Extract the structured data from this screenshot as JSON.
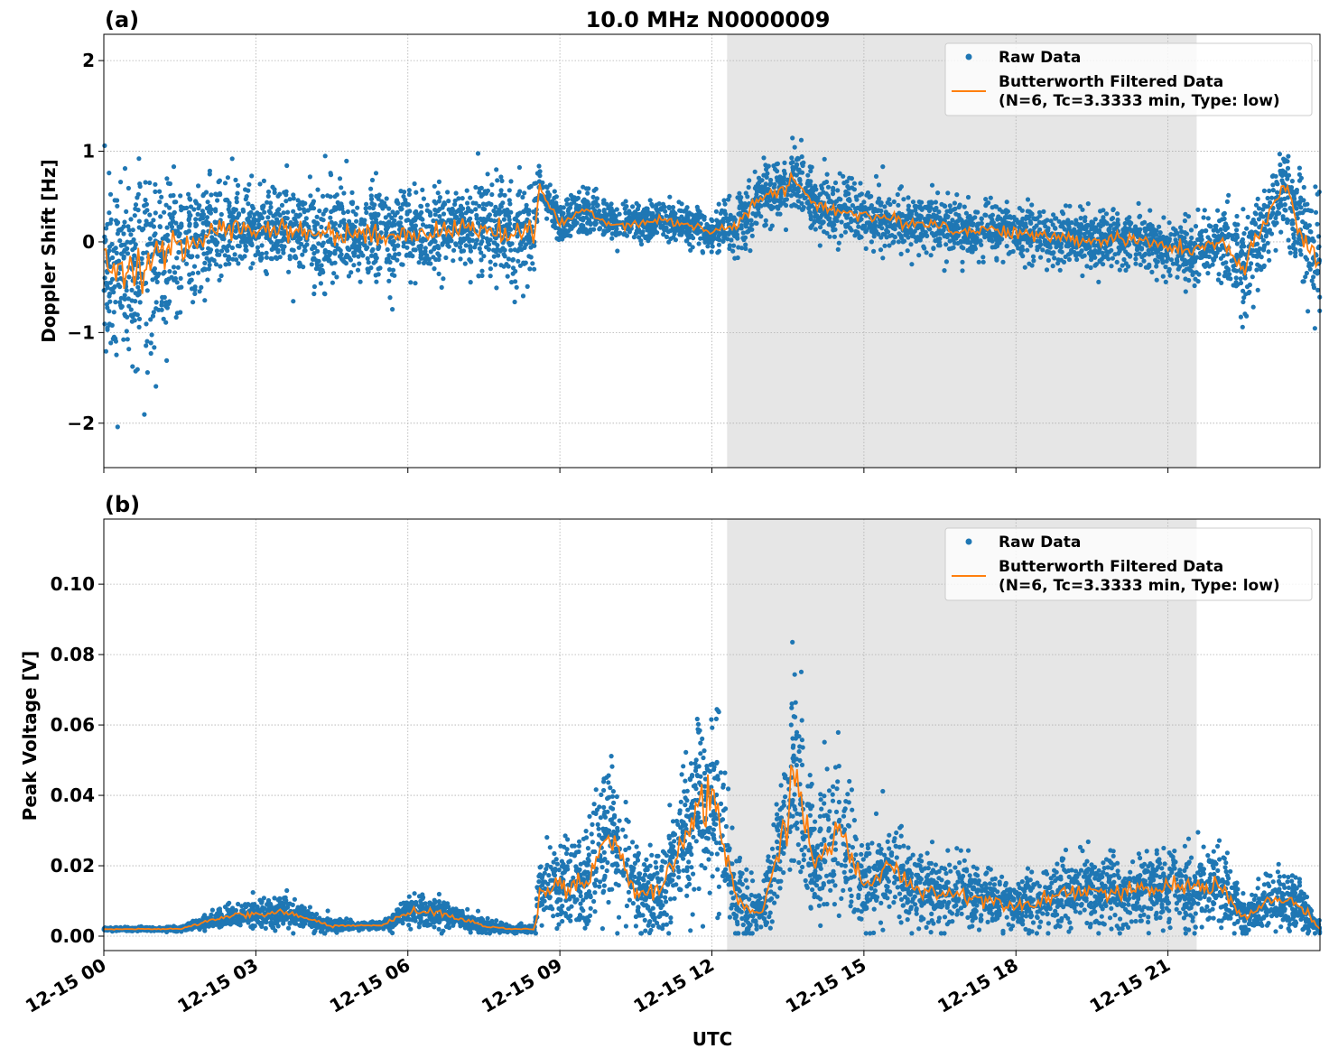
{
  "chart_data": [
    {
      "type": "scatter",
      "panel_label": "(a)",
      "title": "10.0 MHz N0000009",
      "ylabel": "Doppler Shift [Hz]",
      "xlabel": "",
      "xlim_hours_utc": [
        0,
        24
      ],
      "ylim": [
        -2.49,
        2.29
      ],
      "yticks": [
        2,
        1,
        0,
        -1,
        -2
      ],
      "ytick_labels": [
        "2",
        "1",
        "0",
        "−1",
        "−2"
      ],
      "grid": true,
      "legend_placement": "top-right",
      "legend": [
        "Raw Data",
        "Butterworth Filtered Data",
        "(N=6, Tc=3.3333 min, Type: low)"
      ],
      "shaded_span_utc": [
        "12-15 12:18",
        "12-15 21:34"
      ],
      "x_hours_utc": [
        0,
        0.5,
        1,
        1.5,
        2,
        2.5,
        3,
        3.5,
        4,
        4.5,
        5,
        5.5,
        6,
        6.5,
        7,
        7.5,
        8,
        8.5,
        8.6,
        9,
        9.5,
        10,
        10.5,
        11,
        11.5,
        12,
        12.5,
        13,
        13.5,
        13.6,
        14,
        14.5,
        15,
        15.5,
        16,
        16.5,
        17,
        17.5,
        18,
        18.5,
        19,
        19.5,
        20,
        20.5,
        21,
        21.5,
        22,
        22.5,
        23,
        23.3,
        23.5,
        24
      ],
      "series": [
        {
          "name": "Butterworth Filtered Data",
          "kind": "line",
          "values": [
            -0.3,
            -0.3,
            -0.2,
            -0.1,
            0.1,
            0.15,
            0.15,
            0.15,
            0.1,
            0.1,
            0.1,
            0.05,
            0.1,
            0.1,
            0.15,
            0.15,
            0.1,
            0.1,
            0.6,
            0.2,
            0.35,
            0.2,
            0.2,
            0.25,
            0.2,
            0.1,
            0.2,
            0.5,
            0.55,
            0.75,
            0.4,
            0.35,
            0.3,
            0.25,
            0.2,
            0.2,
            0.1,
            0.15,
            0.1,
            0.05,
            0.05,
            0.0,
            0.05,
            0.0,
            -0.05,
            -0.1,
            0.0,
            -0.3,
            0.3,
            0.65,
            0.3,
            -0.3
          ]
        },
        {
          "name": "Raw Data",
          "kind": "scatter",
          "spread_about_filtered": [
            1.0,
            1.0,
            1.0,
            0.8,
            0.6,
            0.5,
            0.5,
            0.5,
            0.5,
            0.55,
            0.6,
            0.5,
            0.45,
            0.45,
            0.5,
            0.5,
            0.55,
            0.6,
            0.25,
            0.2,
            0.25,
            0.2,
            0.2,
            0.2,
            0.2,
            0.2,
            0.3,
            0.35,
            0.35,
            0.35,
            0.3,
            0.3,
            0.3,
            0.3,
            0.3,
            0.3,
            0.3,
            0.3,
            0.3,
            0.3,
            0.3,
            0.3,
            0.3,
            0.3,
            0.3,
            0.3,
            0.4,
            0.5,
            0.5,
            0.5,
            0.5,
            0.8
          ]
        }
      ]
    },
    {
      "type": "scatter",
      "panel_label": "(b)",
      "ylabel": "Peak Voltage [V]",
      "xlabel": "UTC",
      "xlim_hours_utc": [
        0,
        24
      ],
      "ylim": [
        -0.0041,
        0.1185
      ],
      "yticks": [
        0,
        0.02,
        0.04,
        0.06,
        0.08,
        0.1
      ],
      "ytick_labels": [
        "0.00",
        "0.02",
        "0.04",
        "0.06",
        "0.08",
        "0.10"
      ],
      "xticks_hours": [
        0,
        3,
        6,
        9,
        12,
        15,
        18,
        21
      ],
      "xtick_labels": [
        "12-15 00",
        "12-15 03",
        "12-15 06",
        "12-15 09",
        "12-15 12",
        "12-15 15",
        "12-15 18",
        "12-15 21"
      ],
      "grid": true,
      "legend_placement": "top-right",
      "legend": [
        "Raw Data",
        "Butterworth Filtered Data",
        "(N=6, Tc=3.3333 min, Type: low)"
      ],
      "shaded_span_utc": [
        "12-15 12:18",
        "12-15 21:34"
      ],
      "x_hours_utc": [
        0,
        0.5,
        1,
        1.5,
        2,
        2.5,
        3,
        3.5,
        4,
        4.5,
        5,
        5.5,
        6,
        6.5,
        7,
        7.5,
        8,
        8.5,
        8.6,
        9,
        9.5,
        10,
        10.5,
        11,
        11.5,
        12,
        12.5,
        13,
        13.5,
        13.6,
        14,
        14.5,
        15,
        15.5,
        16,
        16.5,
        17,
        17.5,
        18,
        18.5,
        19,
        19.5,
        20,
        20.5,
        21,
        21.5,
        22,
        22.5,
        23,
        23.3,
        23.5,
        24
      ],
      "series": [
        {
          "name": "Butterworth Filtered Data",
          "kind": "line",
          "values": [
            0.002,
            0.002,
            0.002,
            0.002,
            0.004,
            0.006,
            0.006,
            0.007,
            0.005,
            0.003,
            0.003,
            0.003,
            0.007,
            0.007,
            0.005,
            0.003,
            0.002,
            0.002,
            0.012,
            0.015,
            0.015,
            0.03,
            0.012,
            0.012,
            0.03,
            0.04,
            0.01,
            0.006,
            0.035,
            0.05,
            0.02,
            0.03,
            0.014,
            0.02,
            0.014,
            0.012,
            0.012,
            0.01,
            0.009,
            0.01,
            0.013,
            0.013,
            0.012,
            0.013,
            0.014,
            0.014,
            0.015,
            0.005,
            0.01,
            0.01,
            0.01,
            0.002
          ]
        },
        {
          "name": "Raw Data",
          "kind": "scatter",
          "spread_about_filtered": [
            0.0005,
            0.0005,
            0.0005,
            0.0008,
            0.002,
            0.003,
            0.004,
            0.005,
            0.003,
            0.002,
            0.001,
            0.001,
            0.004,
            0.005,
            0.003,
            0.002,
            0.001,
            0.001,
            0.01,
            0.012,
            0.012,
            0.02,
            0.012,
            0.012,
            0.02,
            0.03,
            0.012,
            0.006,
            0.025,
            0.03,
            0.015,
            0.02,
            0.012,
            0.012,
            0.01,
            0.01,
            0.01,
            0.008,
            0.007,
            0.008,
            0.01,
            0.01,
            0.01,
            0.01,
            0.011,
            0.011,
            0.012,
            0.005,
            0.008,
            0.008,
            0.008,
            0.002
          ]
        }
      ]
    }
  ],
  "colors": {
    "raw": "#1f77b4",
    "filtered": "#ff7f0e",
    "shade": "#e6e6e6"
  }
}
